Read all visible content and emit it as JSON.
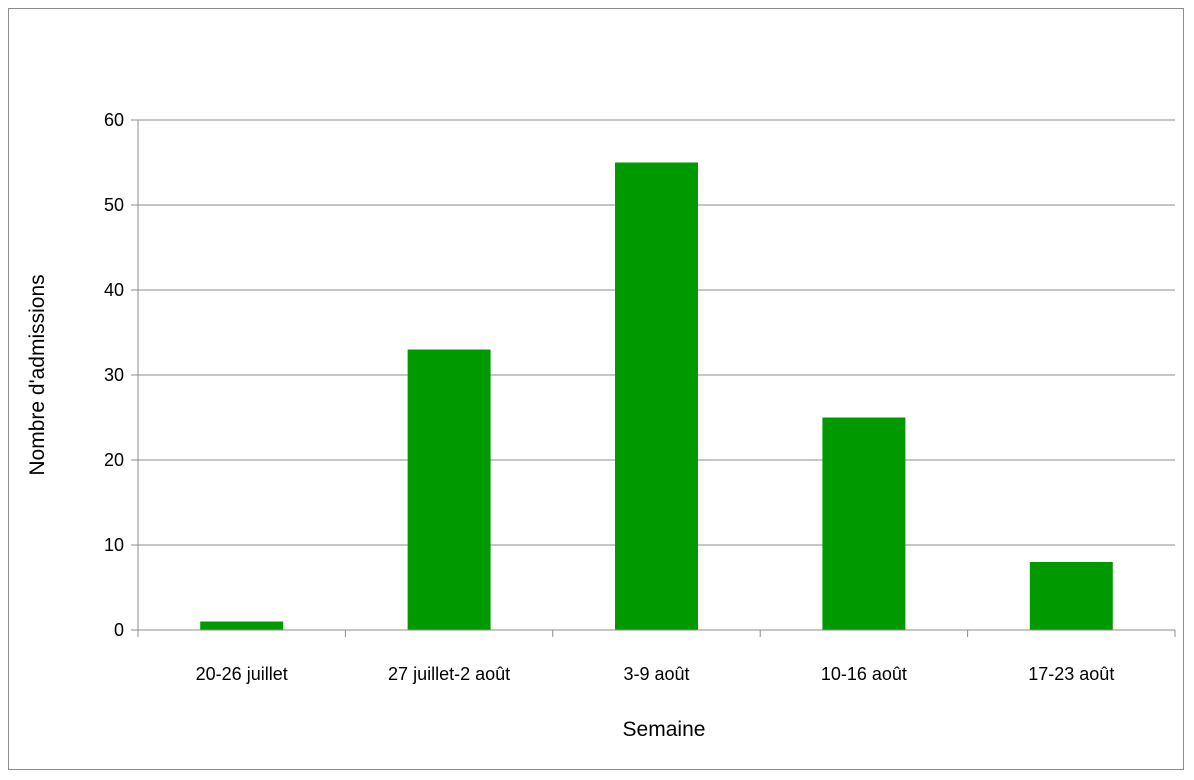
{
  "chart_data": {
    "type": "bar",
    "title": "",
    "xlabel": "Semaine",
    "ylabel": "Nombre d'admissions",
    "categories": [
      "20-26 juillet",
      "27 juillet-2 août",
      "3-9 août",
      "10-16 août",
      "17-23 août"
    ],
    "values": [
      1,
      33,
      55,
      25,
      8
    ],
    "ylim": [
      0,
      60
    ],
    "yticks": [
      0,
      10,
      20,
      30,
      40,
      50,
      60
    ],
    "grid": true,
    "legend": "none",
    "colors": {
      "bar": "#009900",
      "grid": "#8c8c8c",
      "text": "#000000"
    }
  }
}
